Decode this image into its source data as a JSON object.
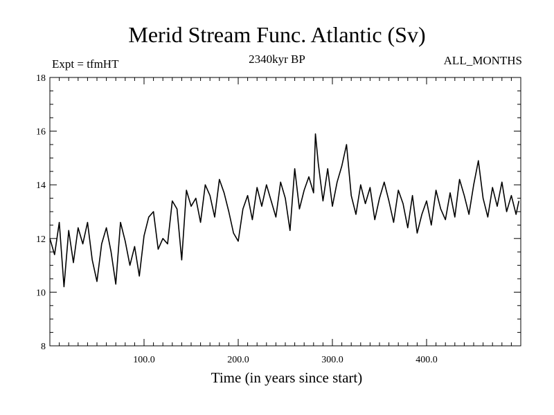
{
  "chart_data": {
    "type": "line",
    "title": "Merid Stream Func. Atlantic (Sv)",
    "subtitle_left": "Expt = tfmHT",
    "subtitle_center": "2340kyr BP",
    "subtitle_right": "ALL_MONTHS",
    "xlabel": "Time (in years since start)",
    "ylabel": "",
    "xlim": [
      0,
      500
    ],
    "ylim": [
      8,
      18
    ],
    "xticks": [
      100,
      200,
      300,
      400
    ],
    "xtick_labels": [
      "100.0",
      "200.0",
      "300.0",
      "400.0"
    ],
    "yticks": [
      8,
      10,
      12,
      14,
      16,
      18
    ],
    "ytick_labels": [
      "8",
      "10",
      "12",
      "14",
      "16",
      "18"
    ],
    "series": [
      {
        "name": "Merid Stream Func. Atlantic",
        "x": [
          0,
          5,
          10,
          15,
          20,
          25,
          30,
          35,
          40,
          45,
          50,
          55,
          60,
          65,
          70,
          75,
          80,
          85,
          90,
          95,
          100,
          105,
          110,
          115,
          120,
          125,
          130,
          135,
          140,
          145,
          150,
          155,
          160,
          165,
          170,
          175,
          180,
          185,
          190,
          195,
          200,
          205,
          210,
          215,
          220,
          225,
          230,
          235,
          240,
          245,
          250,
          255,
          260,
          265,
          270,
          275,
          280,
          282,
          285,
          290,
          295,
          300,
          305,
          310,
          315,
          320,
          325,
          330,
          335,
          340,
          345,
          350,
          355,
          360,
          365,
          370,
          375,
          380,
          385,
          390,
          395,
          400,
          405,
          410,
          415,
          420,
          425,
          430,
          435,
          440,
          445,
          450,
          455,
          460,
          465,
          470,
          475,
          480,
          485,
          490,
          495,
          498
        ],
        "values": [
          12.0,
          11.4,
          12.6,
          10.2,
          12.3,
          11.1,
          12.4,
          11.8,
          12.6,
          11.2,
          10.4,
          11.8,
          12.4,
          11.5,
          10.3,
          12.6,
          11.9,
          11.0,
          11.7,
          10.6,
          12.1,
          12.8,
          13.0,
          11.6,
          12.0,
          11.8,
          13.4,
          13.1,
          11.2,
          13.8,
          13.2,
          13.5,
          12.6,
          14.0,
          13.6,
          12.8,
          14.2,
          13.7,
          13.0,
          12.2,
          11.9,
          13.1,
          13.6,
          12.7,
          13.9,
          13.2,
          14.0,
          13.4,
          12.8,
          14.1,
          13.5,
          12.3,
          14.6,
          13.1,
          13.8,
          14.3,
          13.7,
          15.9,
          14.8,
          13.4,
          14.6,
          13.2,
          14.1,
          14.7,
          15.5,
          13.6,
          12.9,
          14.0,
          13.3,
          13.9,
          12.7,
          13.5,
          14.1,
          13.4,
          12.6,
          13.8,
          13.3,
          12.4,
          13.6,
          12.2,
          12.9,
          13.4,
          12.5,
          13.8,
          13.1,
          12.7,
          13.7,
          12.8,
          14.2,
          13.6,
          12.9,
          14.0,
          14.9,
          13.5,
          12.8,
          13.9,
          13.2,
          14.1,
          13.0,
          13.6,
          12.9,
          13.4
        ]
      }
    ]
  }
}
